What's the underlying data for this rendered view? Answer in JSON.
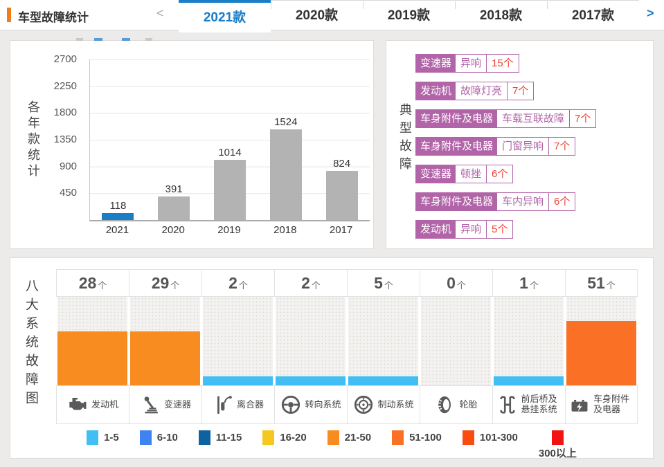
{
  "header": {
    "title": "车型故障统计",
    "accent_color": "#f07c1c",
    "active_tab_color": "#1a7dc8",
    "prev_label": "<",
    "next_label": ">",
    "tabs": [
      {
        "label": "2021款",
        "active": true
      },
      {
        "label": "2020款",
        "active": false
      },
      {
        "label": "2019款",
        "active": false
      },
      {
        "label": "2018款",
        "active": false
      },
      {
        "label": "2017款",
        "active": false
      }
    ]
  },
  "yearly_panel": {
    "side_label": "各年款统计",
    "y_ticks": [
      "2700",
      "2250",
      "1800",
      "1350",
      "900",
      "450"
    ]
  },
  "typical_faults": {
    "side_label": "典型故障",
    "tag_color": "#b264a8",
    "count_color": "#ef4134",
    "items": [
      {
        "system": "变速器",
        "fault": "异响",
        "count": "15个"
      },
      {
        "system": "发动机",
        "fault": "故障灯亮",
        "count": "7个"
      },
      {
        "system": "车身附件及电器",
        "fault": "车载互联故障",
        "count": "7个"
      },
      {
        "system": "车身附件及电器",
        "fault": "门窗异响",
        "count": "7个"
      },
      {
        "system": "变速器",
        "fault": "顿挫",
        "count": "6个"
      },
      {
        "system": "车身附件及电器",
        "fault": "车内异响",
        "count": "6个"
      },
      {
        "system": "发动机",
        "fault": "异响",
        "count": "5个"
      }
    ]
  },
  "systems_panel": {
    "side_label": "八大系统故障图",
    "unit": "个",
    "columns": [
      {
        "name": "发动机",
        "icon": "engine-icon",
        "count": 28,
        "bar_color": "#F98C21",
        "bar_pct": 61
      },
      {
        "name": "变速器",
        "icon": "gearshift-icon",
        "count": 29,
        "bar_color": "#F98C21",
        "bar_pct": 61
      },
      {
        "name": "离合器",
        "icon": "clutch-icon",
        "count": 2,
        "bar_color": "#41BEF3",
        "bar_pct": 10
      },
      {
        "name": "转向系统",
        "icon": "steering-wheel-icon",
        "count": 2,
        "bar_color": "#41BEF3",
        "bar_pct": 10
      },
      {
        "name": "制动系统",
        "icon": "brake-disc-icon",
        "count": 5,
        "bar_color": "#41BEF3",
        "bar_pct": 10
      },
      {
        "name": "轮胎",
        "icon": "tire-icon",
        "count": 0,
        "bar_color": null,
        "bar_pct": 0
      },
      {
        "name": "前后桥及悬挂系统",
        "icon": "axle-suspension-icon",
        "count": 1,
        "bar_color": "#41BEF3",
        "bar_pct": 10
      },
      {
        "name": "车身附件及电器",
        "icon": "battery-icon",
        "count": 51,
        "bar_color": "#FA7024",
        "bar_pct": 73
      }
    ],
    "legend": [
      {
        "range": "1-5",
        "color": "#41BEF3"
      },
      {
        "range": "6-10",
        "color": "#3E83F0"
      },
      {
        "range": "11-15",
        "color": "#0C63A0"
      },
      {
        "range": "16-20",
        "color": "#F6C71F"
      },
      {
        "range": "21-50",
        "color": "#F98C21"
      },
      {
        "range": "51-100",
        "color": "#FA7024"
      },
      {
        "range": "101-300",
        "color": "#FA4B11"
      },
      {
        "range": "300以上",
        "color": "#F21212"
      }
    ]
  },
  "chart_data": [
    {
      "type": "bar",
      "title": "各年款统计",
      "categories": [
        "2021",
        "2020",
        "2019",
        "2018",
        "2017"
      ],
      "values": [
        118,
        391,
        1014,
        1524,
        824
      ],
      "bar_colors": [
        "#1a7dc8",
        "#b3b3b3",
        "#b3b3b3",
        "#b3b3b3",
        "#b3b3b3"
      ],
      "xlabel": "",
      "ylabel": "各年款统计",
      "ylim": [
        0,
        2700
      ],
      "y_ticks": [
        2700,
        2250,
        1800,
        1350,
        900,
        450
      ],
      "grid": true,
      "data_labels": true,
      "legend_position": "none"
    },
    {
      "type": "bar",
      "title": "八大系统故障图",
      "categories": [
        "发动机",
        "变速器",
        "离合器",
        "转向系统",
        "制动系统",
        "轮胎",
        "前后桥及悬挂系统",
        "车身附件及电器"
      ],
      "values": [
        28,
        29,
        2,
        2,
        5,
        0,
        1,
        51
      ],
      "unit": "个",
      "color_scale": [
        {
          "range": "1-5",
          "color": "#41BEF3"
        },
        {
          "range": "6-10",
          "color": "#3E83F0"
        },
        {
          "range": "11-15",
          "color": "#0C63A0"
        },
        {
          "range": "16-20",
          "color": "#F6C71F"
        },
        {
          "range": "21-50",
          "color": "#F98C21"
        },
        {
          "range": "51-100",
          "color": "#FA7024"
        },
        {
          "range": "101-300",
          "color": "#FA4B11"
        },
        {
          "range": "300以上",
          "color": "#F21212"
        }
      ],
      "legend_position": "bottom"
    }
  ]
}
